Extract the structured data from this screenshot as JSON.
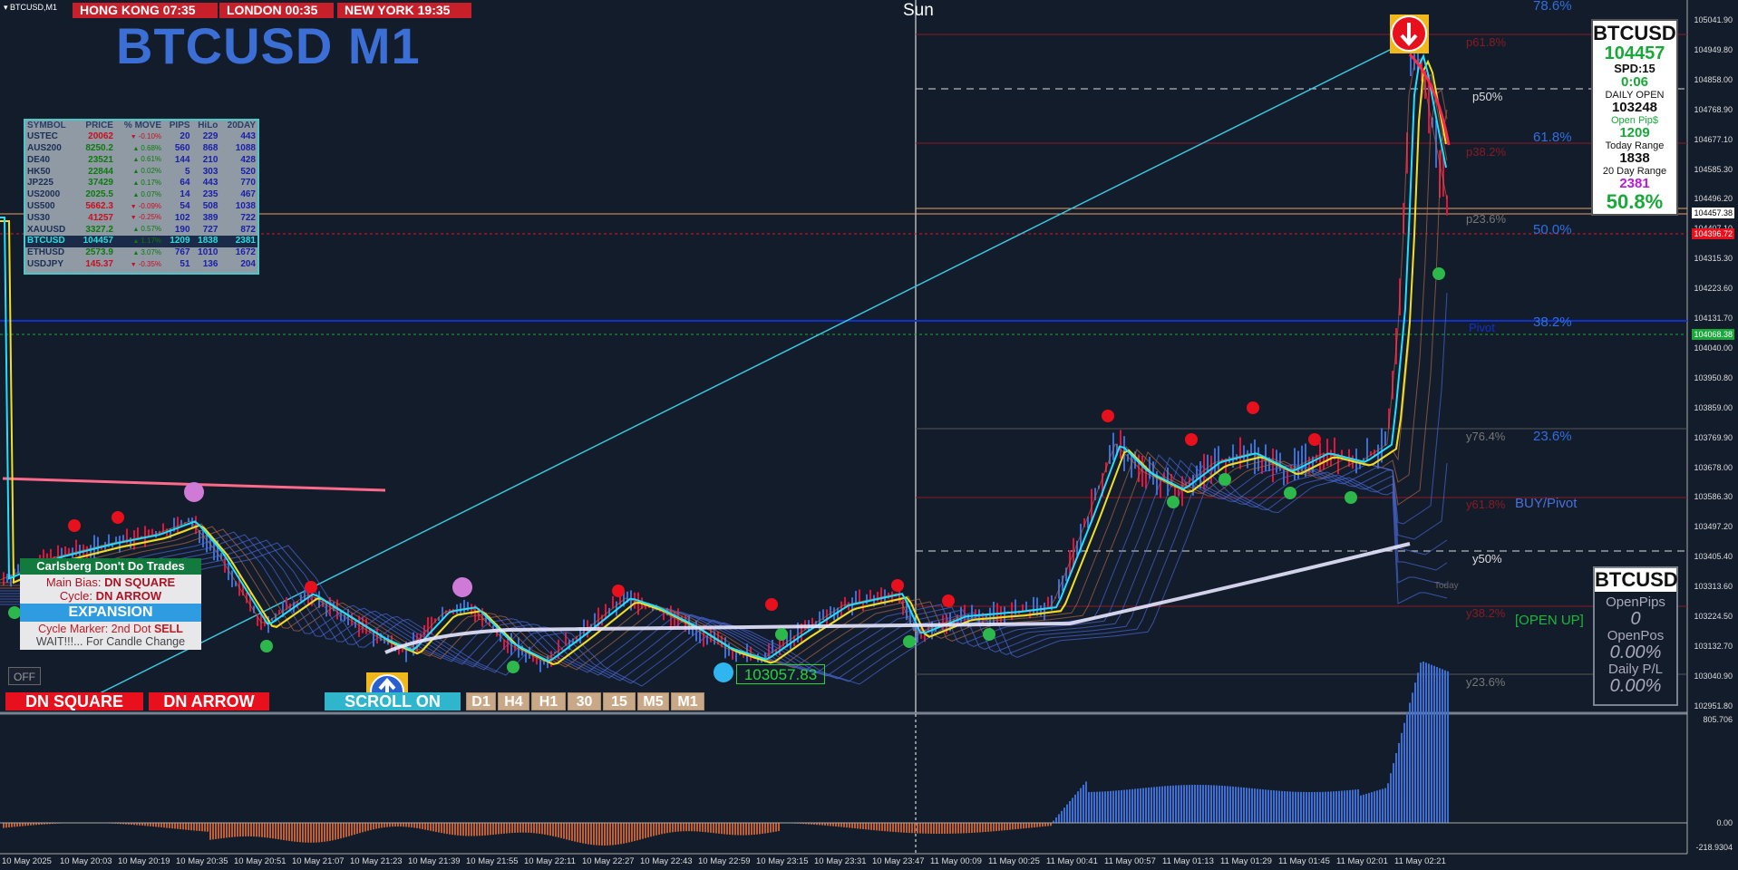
{
  "header": {
    "symbol_tag": "▾ BTCUSD,M1",
    "clocks": [
      "HONG KONG 07:35",
      "LONDON  00:35",
      "NEW YORK  19:35"
    ],
    "title": "BTCUSD M1",
    "day_label": "Sun"
  },
  "market_table": {
    "headers": [
      "SYMBOL",
      "PRICE",
      "% MOVE",
      "PIPS",
      "HiLo",
      "20DAY"
    ],
    "rows": [
      {
        "symbol": "USTEC",
        "price": "20062",
        "dir": "dn",
        "move": "-0.10%",
        "pips": "20",
        "hilo": "229",
        "d20": "443"
      },
      {
        "symbol": "AUS200",
        "price": "8250.2",
        "dir": "up",
        "move": "0.68%",
        "pips": "560",
        "hilo": "868",
        "d20": "1088"
      },
      {
        "symbol": "DE40",
        "price": "23521",
        "dir": "up",
        "move": "0.61%",
        "pips": "144",
        "hilo": "210",
        "d20": "428"
      },
      {
        "symbol": "HK50",
        "price": "22844",
        "dir": "up",
        "move": "0.02%",
        "pips": "5",
        "hilo": "303",
        "d20": "520"
      },
      {
        "symbol": "JP225",
        "price": "37429",
        "dir": "up",
        "move": "0.17%",
        "pips": "64",
        "hilo": "443",
        "d20": "770"
      },
      {
        "symbol": "US2000",
        "price": "2025.5",
        "dir": "up",
        "move": "0.07%",
        "pips": "14",
        "hilo": "235",
        "d20": "467"
      },
      {
        "symbol": "US500",
        "price": "5662.3",
        "dir": "dn",
        "move": "-0.09%",
        "pips": "54",
        "hilo": "508",
        "d20": "1038"
      },
      {
        "symbol": "US30",
        "price": "41257",
        "dir": "dn",
        "move": "-0.25%",
        "pips": "102",
        "hilo": "389",
        "d20": "722"
      },
      {
        "symbol": "XAUUSD",
        "price": "3327.2",
        "dir": "up",
        "move": "0.57%",
        "pips": "190",
        "hilo": "727",
        "d20": "872"
      },
      {
        "symbol": "BTCUSD",
        "price": "104457",
        "dir": "up",
        "move": "1.17%",
        "pips": "1209",
        "hilo": "1838",
        "d20": "2381"
      },
      {
        "symbol": "ETHUSD",
        "price": "2573.9",
        "dir": "up",
        "move": "3.07%",
        "pips": "767",
        "hilo": "1010",
        "d20": "1672"
      },
      {
        "symbol": "USDJPY",
        "price": "145.37",
        "dir": "dn",
        "move": "-0.35%",
        "pips": "51",
        "hilo": "136",
        "d20": "204"
      }
    ]
  },
  "carlsberg": {
    "header": "Carlsberg Don't Do Trades",
    "bias_label": "Main Bias:",
    "bias_value": "DN SQUARE",
    "cycle_label": "Cycle:",
    "cycle_value": "DN ARROW",
    "expansion": "EXPANSION",
    "marker_label": "Cycle Marker: 2nd Dot",
    "marker_value": "SELL",
    "wait": "WAIT!!!... For Candle Change"
  },
  "controls": {
    "off": "OFF",
    "dn_square": "DN SQUARE",
    "dn_arrow": "DN ARROW",
    "scroll": "SCROLL ON",
    "timeframes": [
      "D1",
      "H4",
      "H1",
      "30",
      "15",
      "M5",
      "M1"
    ]
  },
  "price_marker": "103057.83",
  "info_panel": {
    "symbol": "BTCUSD",
    "price": "104457",
    "spread": "SPD:15",
    "timer": "0:06",
    "daily_open_label": "DAILY OPEN",
    "daily_open": "103248",
    "open_pips_label": "Open Pip$",
    "open_pips": "1209",
    "today_range_label": "Today Range",
    "today_range": "1838",
    "day20_label": "20 Day Range",
    "day20": "2381",
    "pct": "50.8%"
  },
  "positions_panel": {
    "symbol": "BTCUSD",
    "open_pips_label": "OpenPips",
    "open_pips": "0",
    "open_pos_label": "OpenPos",
    "open_pos": "0.00%",
    "daily_pl_label": "Daily P/L",
    "daily_pl": "0.00%"
  },
  "levels": {
    "fib_786": "78.6%",
    "fib_618": "61.8%",
    "fib_50": "50.0%",
    "fib_382": "38.2%",
    "fib_236": "23.6%",
    "p618": "p61.8%",
    "p50": "p50%",
    "p382": "p38.2%",
    "p236": "p23.6%",
    "pivot": "Pivot",
    "y764": "y76.4%",
    "y618": "y61.8%",
    "buy_pivot": "BUY/Pivot",
    "y50": "y50%",
    "y382": "y38.2%",
    "y236": "y23.6%",
    "open_up": "[OPEN UP]",
    "today": "Today"
  },
  "y_axis": [
    "105041.90",
    "104949.80",
    "104858.00",
    "104768.90",
    "104677.10",
    "104585.30",
    "104496.20",
    "104407.10",
    "104315.30",
    "104223.60",
    "104131.70",
    "104040.00",
    "103950.80",
    "103859.00",
    "103769.90",
    "103678.00",
    "103586.30",
    "103497.20",
    "103405.40",
    "103313.60",
    "103224.50",
    "103132.70",
    "103040.90",
    "102951.80"
  ],
  "price_tags": {
    "bid": "104457.38",
    "red": "104396.72",
    "green": "104068.38"
  },
  "osc_axis": {
    "top": "805.706",
    "zero": "0.00",
    "bottom": "-218.9304"
  },
  "x_axis": [
    "10 May 2025",
    "10 May 20:03",
    "10 May 20:19",
    "10 May 20:35",
    "10 May 20:51",
    "10 May 21:07",
    "10 May 21:23",
    "10 May 21:39",
    "10 May 21:55",
    "10 May 22:11",
    "10 May 22:27",
    "10 May 22:43",
    "10 May 22:59",
    "10 May 23:15",
    "10 May 23:31",
    "10 May 23:47",
    "11 May 00:09",
    "11 May 00:25",
    "11 May 00:41",
    "11 May 00:57",
    "11 May 01:13",
    "11 May 01:29",
    "11 May 01:45",
    "11 May 02:01",
    "11 May 02:21"
  ],
  "colors": {
    "bg": "#131c2b",
    "up_candle": "#3b6fd6",
    "dn_candle": "#e8103c",
    "fast_ma": "#1ee0ff",
    "slow_ma": "#f0e020",
    "pivot_line": "#1030d0",
    "fib_red": "#8a1a22"
  }
}
